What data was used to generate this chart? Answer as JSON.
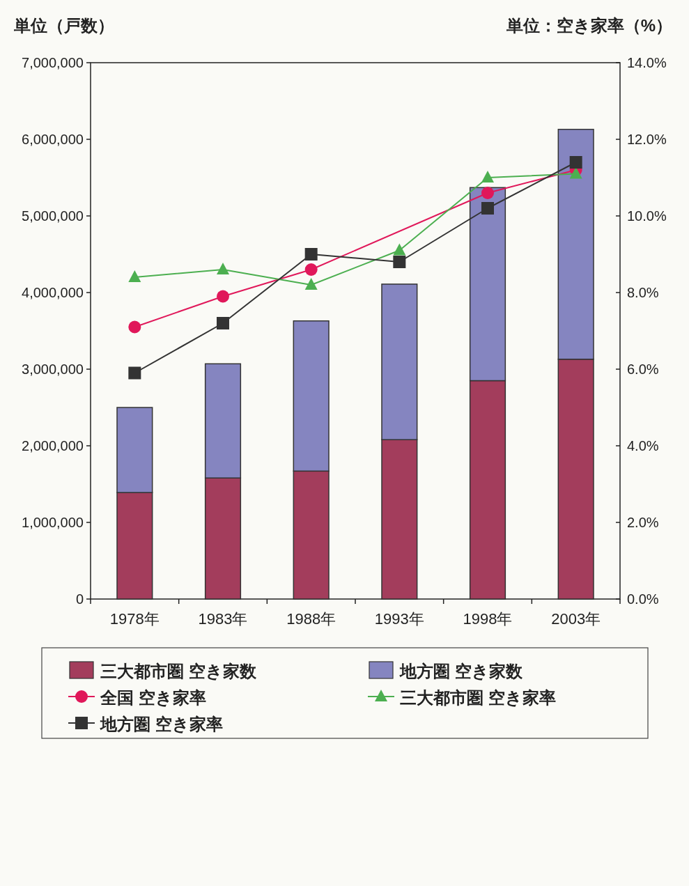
{
  "chart_data": {
    "type": "bar",
    "stacked": true,
    "categories": [
      "1978年",
      "1983年",
      "1988年",
      "1993年",
      "1998年",
      "2003年"
    ],
    "ylabel": "単位（戸数）",
    "y2label": "単位：空き家率（%）",
    "ylim": [
      0,
      7000000
    ],
    "yticks": [
      0,
      {
        "value": 1000000,
        "label": "1,000,000"
      },
      {
        "value": 2000000,
        "label": "2,000,000"
      },
      {
        "value": 3000000,
        "label": "3,000,000"
      },
      {
        "value": 4000000,
        "label": "4,000,000"
      },
      {
        "value": 5000000,
        "label": "5,000,000"
      },
      {
        "value": 6000000,
        "label": "6,000,000"
      },
      {
        "value": 7000000,
        "label": "7,000,000"
      }
    ],
    "y2lim": [
      0,
      14
    ],
    "y2ticks": [
      {
        "value": 0,
        "label": "0.0%"
      },
      {
        "value": 2,
        "label": "2.0%"
      },
      {
        "value": 4,
        "label": "4.0%"
      },
      {
        "value": 6,
        "label": "6.0%"
      },
      {
        "value": 8,
        "label": "8.0%"
      },
      {
        "value": 10,
        "label": "10.0%"
      },
      {
        "value": 12,
        "label": "12.0%"
      },
      {
        "value": 14,
        "label": "14.0%"
      }
    ],
    "legend": "bottom",
    "grid": false,
    "series": [
      {
        "name": "三大都市圏 空き家数",
        "color": "#a33d5c",
        "values": [
          1390000,
          1580000,
          1670000,
          2080000,
          2850000,
          3130000
        ]
      },
      {
        "name": "地方圏 空き家数",
        "color": "#8585c0",
        "values": [
          1110000,
          1490000,
          1960000,
          2030000,
          2520000,
          3000000
        ]
      },
      {
        "name": "全国 空き家率",
        "type": "line",
        "axis": "y2",
        "marker": "circle",
        "color": "#e0185a",
        "values": [
          7.1,
          7.9,
          8.6,
          null,
          10.6,
          11.2
        ]
      },
      {
        "name": "三大都市圏 空き家率",
        "type": "line",
        "axis": "y2",
        "marker": "triangle",
        "color": "#4caf50",
        "values": [
          8.4,
          8.6,
          8.2,
          9.1,
          11.0,
          11.1
        ]
      },
      {
        "name": "地方圏 空き家率",
        "type": "line",
        "axis": "y2",
        "marker": "square",
        "color": "#333333",
        "values": [
          5.9,
          7.2,
          9.0,
          8.8,
          10.2,
          11.4
        ]
      }
    ]
  }
}
